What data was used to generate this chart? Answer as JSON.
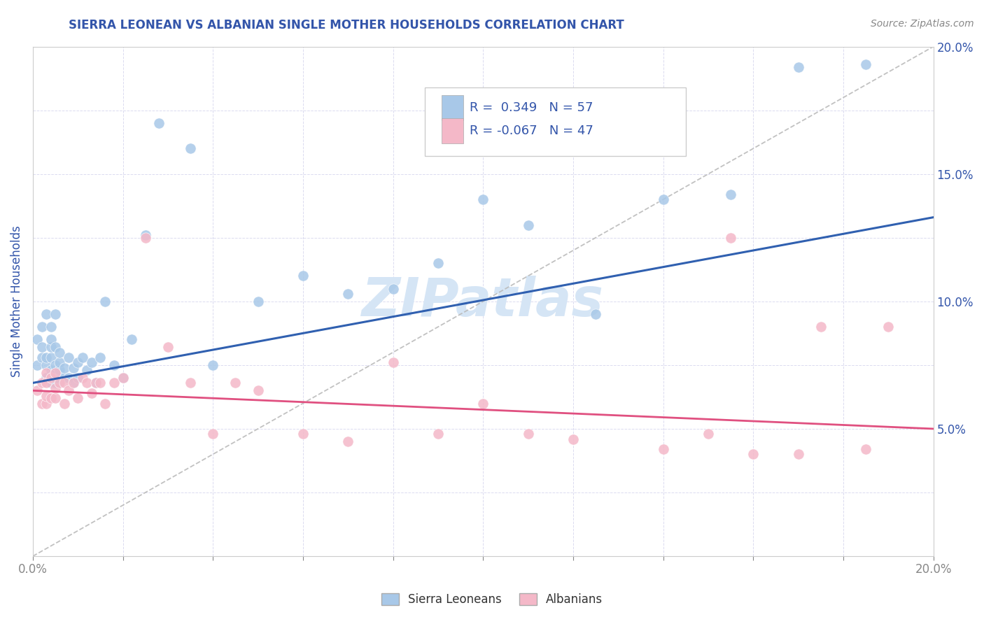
{
  "title": "SIERRA LEONEAN VS ALBANIAN SINGLE MOTHER HOUSEHOLDS CORRELATION CHART",
  "source_text": "Source: ZipAtlas.com",
  "ylabel": "Single Mother Households",
  "xlabel": "",
  "xlim": [
    0.0,
    0.2
  ],
  "ylim": [
    0.0,
    0.2
  ],
  "blue_R": 0.349,
  "blue_N": 57,
  "pink_R": -0.067,
  "pink_N": 47,
  "blue_color": "#a8c8e8",
  "pink_color": "#f4b8c8",
  "blue_line_color": "#3060b0",
  "pink_line_color": "#e05080",
  "title_color": "#3355aa",
  "label_color": "#3355aa",
  "watermark": "ZIPatlas",
  "watermark_color": "#d5e5f5",
  "background_color": "#ffffff",
  "grid_color": "#d8d8ee",
  "dashed_line_color": "#bbbbbb",
  "blue_line_x0": 0.0,
  "blue_line_y0": 0.068,
  "blue_line_x1": 0.2,
  "blue_line_y1": 0.133,
  "pink_line_x0": 0.0,
  "pink_line_y0": 0.065,
  "pink_line_x1": 0.2,
  "pink_line_y1": 0.05,
  "blue_scatter_x": [
    0.001,
    0.001,
    0.002,
    0.002,
    0.002,
    0.003,
    0.003,
    0.003,
    0.003,
    0.004,
    0.004,
    0.004,
    0.004,
    0.004,
    0.004,
    0.005,
    0.005,
    0.005,
    0.005,
    0.005,
    0.006,
    0.006,
    0.006,
    0.006,
    0.007,
    0.007,
    0.008,
    0.008,
    0.009,
    0.009,
    0.01,
    0.01,
    0.011,
    0.012,
    0.013,
    0.014,
    0.015,
    0.016,
    0.018,
    0.02,
    0.022,
    0.025,
    0.028,
    0.035,
    0.04,
    0.05,
    0.06,
    0.07,
    0.08,
    0.09,
    0.1,
    0.11,
    0.125,
    0.14,
    0.155,
    0.17,
    0.185
  ],
  "blue_scatter_y": [
    0.075,
    0.085,
    0.078,
    0.082,
    0.09,
    0.07,
    0.075,
    0.078,
    0.095,
    0.068,
    0.073,
    0.078,
    0.082,
    0.085,
    0.09,
    0.068,
    0.072,
    0.075,
    0.082,
    0.095,
    0.068,
    0.073,
    0.076,
    0.08,
    0.07,
    0.074,
    0.07,
    0.078,
    0.068,
    0.074,
    0.07,
    0.076,
    0.078,
    0.073,
    0.076,
    0.068,
    0.078,
    0.1,
    0.075,
    0.07,
    0.085,
    0.126,
    0.17,
    0.16,
    0.075,
    0.1,
    0.11,
    0.103,
    0.105,
    0.115,
    0.14,
    0.13,
    0.095,
    0.14,
    0.142,
    0.192,
    0.193
  ],
  "pink_scatter_x": [
    0.001,
    0.002,
    0.002,
    0.003,
    0.003,
    0.003,
    0.003,
    0.004,
    0.004,
    0.005,
    0.005,
    0.005,
    0.006,
    0.007,
    0.007,
    0.008,
    0.009,
    0.01,
    0.011,
    0.012,
    0.013,
    0.014,
    0.015,
    0.016,
    0.018,
    0.02,
    0.025,
    0.03,
    0.035,
    0.04,
    0.045,
    0.05,
    0.06,
    0.07,
    0.08,
    0.09,
    0.1,
    0.11,
    0.12,
    0.14,
    0.15,
    0.155,
    0.16,
    0.17,
    0.175,
    0.185,
    0.19
  ],
  "pink_scatter_y": [
    0.065,
    0.06,
    0.068,
    0.06,
    0.063,
    0.068,
    0.072,
    0.062,
    0.07,
    0.062,
    0.066,
    0.072,
    0.068,
    0.06,
    0.068,
    0.065,
    0.068,
    0.062,
    0.07,
    0.068,
    0.064,
    0.068,
    0.068,
    0.06,
    0.068,
    0.07,
    0.125,
    0.082,
    0.068,
    0.048,
    0.068,
    0.065,
    0.048,
    0.045,
    0.076,
    0.048,
    0.06,
    0.048,
    0.046,
    0.042,
    0.048,
    0.125,
    0.04,
    0.04,
    0.09,
    0.042,
    0.09
  ]
}
